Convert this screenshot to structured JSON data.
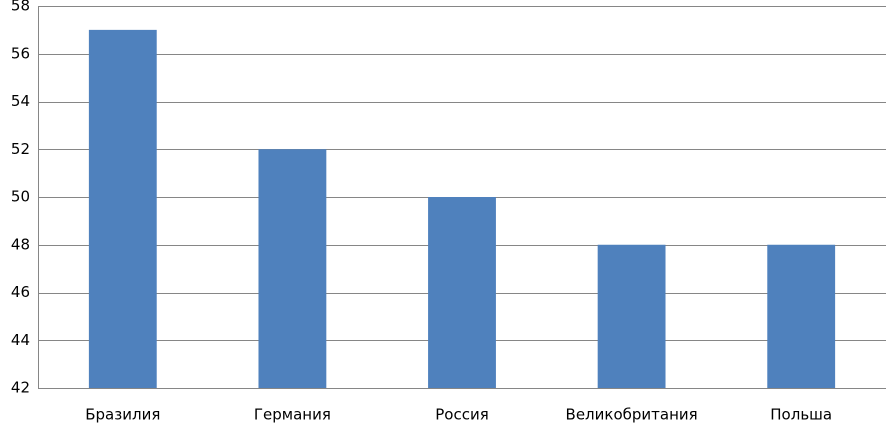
{
  "chart_data": {
    "type": "bar",
    "categories": [
      "Бразилия",
      "Германия",
      "Россия",
      "Великобритания",
      "Польша"
    ],
    "values": [
      57,
      52,
      50,
      48,
      48
    ],
    "color": "#4f81bd",
    "ylim": [
      42,
      58
    ],
    "yticks": [
      42,
      44,
      46,
      48,
      50,
      52,
      54,
      56,
      58
    ],
    "grid": true
  }
}
